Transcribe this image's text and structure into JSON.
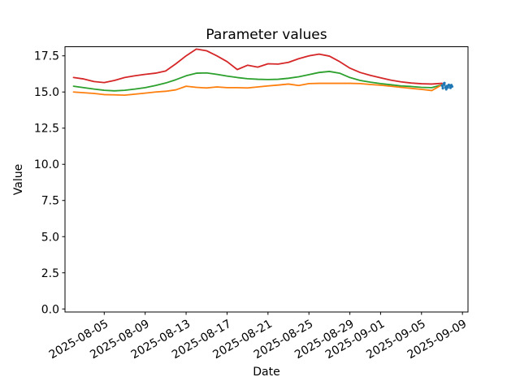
{
  "figure": {
    "background_color": "#ffffff",
    "axes_edge_color": "#000000",
    "tick_color": "#000000",
    "text_color": "#000000"
  },
  "chart_data": {
    "type": "line",
    "title": "Parameter values",
    "xlabel": "Date",
    "ylabel": "Value",
    "legend": "none",
    "grid": false,
    "ylim": [
      -0.21,
      18.13
    ],
    "xlim": [
      "2025-08-01 04:00",
      "2025-09-09 13:00"
    ],
    "ytick_values": [
      0.0,
      2.5,
      5.0,
      7.5,
      10.0,
      12.5,
      15.0,
      17.5
    ],
    "ytick_labels": [
      "0.0",
      "2.5",
      "5.0",
      "7.5",
      "10.0",
      "12.5",
      "15.0",
      "17.5"
    ],
    "xticks": [
      {
        "date": "2025-08-05",
        "label": "2025-08-05"
      },
      {
        "date": "2025-08-09",
        "label": "2025-08-09"
      },
      {
        "date": "2025-08-13",
        "label": "2025-08-13"
      },
      {
        "date": "2025-08-17",
        "label": "2025-08-17"
      },
      {
        "date": "2025-08-21",
        "label": "2025-08-21"
      },
      {
        "date": "2025-08-25",
        "label": "2025-08-25"
      },
      {
        "date": "2025-08-29",
        "label": "2025-08-29"
      },
      {
        "date": "2025-09-01",
        "label": "2025-09-01"
      },
      {
        "date": "2025-09-05",
        "label": "2025-09-05"
      },
      {
        "date": "2025-09-09",
        "label": "2025-09-09"
      }
    ],
    "x_daily": [
      "2025-08-02",
      "2025-08-03",
      "2025-08-04",
      "2025-08-05",
      "2025-08-06",
      "2025-08-07",
      "2025-08-08",
      "2025-08-09",
      "2025-08-10",
      "2025-08-11",
      "2025-08-12",
      "2025-08-13",
      "2025-08-14",
      "2025-08-15",
      "2025-08-16",
      "2025-08-17",
      "2025-08-18",
      "2025-08-19",
      "2025-08-20",
      "2025-08-21",
      "2025-08-22",
      "2025-08-23",
      "2025-08-24",
      "2025-08-25",
      "2025-08-26",
      "2025-08-27",
      "2025-08-28",
      "2025-08-29",
      "2025-08-30",
      "2025-08-31",
      "2025-09-01",
      "2025-09-02",
      "2025-09-03",
      "2025-09-04",
      "2025-09-05",
      "2025-09-06",
      "2025-09-07"
    ],
    "series": [
      {
        "name": "series-red",
        "color": "#d62728",
        "line_width": 1.8,
        "markers": false,
        "values": [
          16.0,
          15.9,
          15.72,
          15.65,
          15.8,
          16.0,
          16.12,
          16.22,
          16.3,
          16.45,
          16.95,
          17.5,
          17.97,
          17.85,
          17.5,
          17.1,
          16.55,
          16.85,
          16.72,
          16.95,
          16.93,
          17.05,
          17.3,
          17.5,
          17.62,
          17.48,
          17.1,
          16.65,
          16.35,
          16.15,
          15.98,
          15.82,
          15.7,
          15.62,
          15.57,
          15.55,
          15.6
        ]
      },
      {
        "name": "series-green",
        "color": "#2ca02c",
        "line_width": 1.8,
        "markers": false,
        "values": [
          15.4,
          15.3,
          15.2,
          15.12,
          15.08,
          15.12,
          15.2,
          15.3,
          15.45,
          15.62,
          15.85,
          16.12,
          16.3,
          16.32,
          16.22,
          16.1,
          16.0,
          15.92,
          15.88,
          15.86,
          15.88,
          15.95,
          16.05,
          16.2,
          16.35,
          16.42,
          16.3,
          16.0,
          15.8,
          15.68,
          15.58,
          15.5,
          15.42,
          15.38,
          15.32,
          15.3,
          15.5
        ]
      },
      {
        "name": "series-orange",
        "color": "#ff7f0e",
        "line_width": 1.8,
        "markers": false,
        "values": [
          15.0,
          14.95,
          14.9,
          14.82,
          14.8,
          14.78,
          14.85,
          14.92,
          15.0,
          15.05,
          15.15,
          15.4,
          15.32,
          15.28,
          15.35,
          15.3,
          15.3,
          15.28,
          15.35,
          15.42,
          15.48,
          15.55,
          15.45,
          15.58,
          15.6,
          15.6,
          15.6,
          15.6,
          15.58,
          15.52,
          15.47,
          15.4,
          15.32,
          15.25,
          15.18,
          15.1,
          15.5
        ]
      },
      {
        "name": "series-blue",
        "color": "#1f77b4",
        "line_width": 1.8,
        "markers": true,
        "x": [
          "2025-09-07 00:00",
          "2025-09-07 02:00",
          "2025-09-07 04:00",
          "2025-09-07 06:00",
          "2025-09-07 08:00",
          "2025-09-07 10:00",
          "2025-09-07 12:00",
          "2025-09-07 14:00",
          "2025-09-07 16:00",
          "2025-09-07 18:00",
          "2025-09-07 20:00",
          "2025-09-07 22:00",
          "2025-09-08 00:00"
        ],
        "values": [
          15.45,
          15.25,
          15.58,
          15.62,
          15.3,
          15.18,
          15.42,
          15.3,
          15.5,
          15.45,
          15.28,
          15.48,
          15.38
        ]
      }
    ]
  }
}
